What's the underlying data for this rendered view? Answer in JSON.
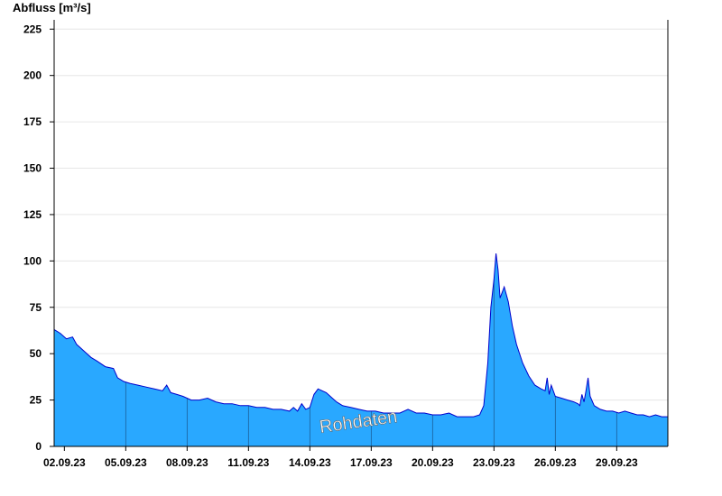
{
  "chart_data": {
    "type": "area",
    "ylabel": "Abfluss [m³/s]",
    "ylim": [
      0,
      230
    ],
    "yticks": [
      0,
      25,
      50,
      75,
      100,
      125,
      150,
      175,
      200,
      225
    ],
    "xlim": [
      1.5,
      31.5
    ],
    "xticks": [
      {
        "day": 2,
        "label": "02.09.23"
      },
      {
        "day": 5,
        "label": "05.09.23"
      },
      {
        "day": 8,
        "label": "08.09.23"
      },
      {
        "day": 11,
        "label": "11.09.23"
      },
      {
        "day": 14,
        "label": "14.09.23"
      },
      {
        "day": 17,
        "label": "17.09.23"
      },
      {
        "day": 20,
        "label": "20.09.23"
      },
      {
        "day": 23,
        "label": "23.09.23"
      },
      {
        "day": 26,
        "label": "26.09.23"
      },
      {
        "day": 29,
        "label": "29.09.23"
      }
    ],
    "grid": true,
    "fill_color": "#29a8ff",
    "line_color": "#0000cc",
    "watermark": "Rohdaten",
    "series": [
      {
        "name": "",
        "x": [
          1.5,
          1.8,
          2.1,
          2.4,
          2.6,
          2.8,
          3.0,
          3.3,
          3.6,
          4.0,
          4.4,
          4.6,
          4.9,
          5.2,
          5.6,
          6.0,
          6.4,
          6.8,
          7.0,
          7.2,
          7.5,
          7.8,
          8.2,
          8.6,
          9.0,
          9.4,
          9.8,
          10.2,
          10.6,
          11.0,
          11.4,
          11.8,
          12.2,
          12.6,
          13.0,
          13.2,
          13.4,
          13.6,
          13.8,
          14.0,
          14.2,
          14.4,
          14.6,
          14.8,
          15.0,
          15.3,
          15.6,
          16.0,
          16.4,
          16.8,
          17.2,
          17.6,
          18.0,
          18.4,
          18.8,
          19.2,
          19.6,
          20.0,
          20.4,
          20.8,
          21.2,
          21.6,
          22.0,
          22.3,
          22.5,
          22.7,
          22.85,
          23.0,
          23.1,
          23.2,
          23.3,
          23.4,
          23.5,
          23.7,
          23.9,
          24.1,
          24.4,
          24.7,
          25.0,
          25.3,
          25.5,
          25.6,
          25.7,
          25.8,
          26.0,
          26.3,
          26.6,
          26.9,
          27.1,
          27.2,
          27.3,
          27.4,
          27.5,
          27.6,
          27.7,
          27.9,
          28.2,
          28.5,
          28.8,
          29.1,
          29.4,
          29.7,
          30.0,
          30.3,
          30.6,
          30.9,
          31.2,
          31.5
        ],
        "values": [
          63,
          61,
          58,
          59,
          55,
          53,
          51,
          48,
          46,
          43,
          42,
          37,
          35,
          34,
          33,
          32,
          31,
          30,
          33,
          29,
          28,
          27,
          25,
          25,
          26,
          24,
          23,
          23,
          22,
          22,
          21,
          21,
          20,
          20,
          19,
          21,
          19,
          23,
          20,
          21,
          28,
          31,
          30,
          29,
          27,
          24,
          22,
          21,
          20,
          19,
          19,
          18,
          18,
          18,
          20,
          18,
          18,
          17,
          17,
          18,
          16,
          16,
          16,
          17,
          22,
          45,
          75,
          90,
          104,
          95,
          80,
          83,
          86,
          78,
          65,
          55,
          45,
          38,
          33,
          31,
          30,
          37,
          28,
          33,
          27,
          26,
          25,
          24,
          23,
          22,
          28,
          24,
          30,
          37,
          27,
          22,
          20,
          19,
          19,
          18,
          19,
          18,
          17,
          17,
          16,
          17,
          16,
          16
        ]
      }
    ]
  }
}
